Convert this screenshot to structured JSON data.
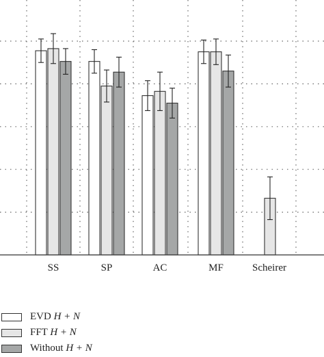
{
  "chart_data": {
    "type": "bar",
    "categories": [
      "SS",
      "SP",
      "AC",
      "MF",
      "Scheirer"
    ],
    "series": [
      {
        "name": "EVD H + N",
        "values": [
          0.955,
          0.905,
          0.745,
          0.95,
          null
        ],
        "errors": [
          0.055,
          0.055,
          0.07,
          0.055,
          null
        ],
        "color": "#ffffff"
      },
      {
        "name": "FFT H + N",
        "values": [
          0.965,
          0.79,
          0.765,
          0.95,
          0.265
        ],
        "errors": [
          0.07,
          0.075,
          0.09,
          0.06,
          0.1
        ],
        "color": "#e6e6e6"
      },
      {
        "name": "Without H + N",
        "values": [
          0.905,
          0.855,
          0.71,
          0.86,
          null
        ],
        "errors": [
          0.06,
          0.07,
          0.07,
          0.075,
          null
        ],
        "color": "#a5a7a7"
      }
    ],
    "ylim": [
      0,
      1.05
    ],
    "yticks": [
      0.2,
      0.4,
      0.6,
      0.8,
      1.0
    ],
    "xlabel": "",
    "ylabel": "",
    "grid": "dotted",
    "legend_position": "bottom-left"
  },
  "legend": {
    "items": [
      {
        "prefix": "EVD ",
        "var": "H + N"
      },
      {
        "prefix": "FFT ",
        "var": "H + N"
      },
      {
        "prefix": "Without ",
        "var": "H + N"
      }
    ]
  }
}
